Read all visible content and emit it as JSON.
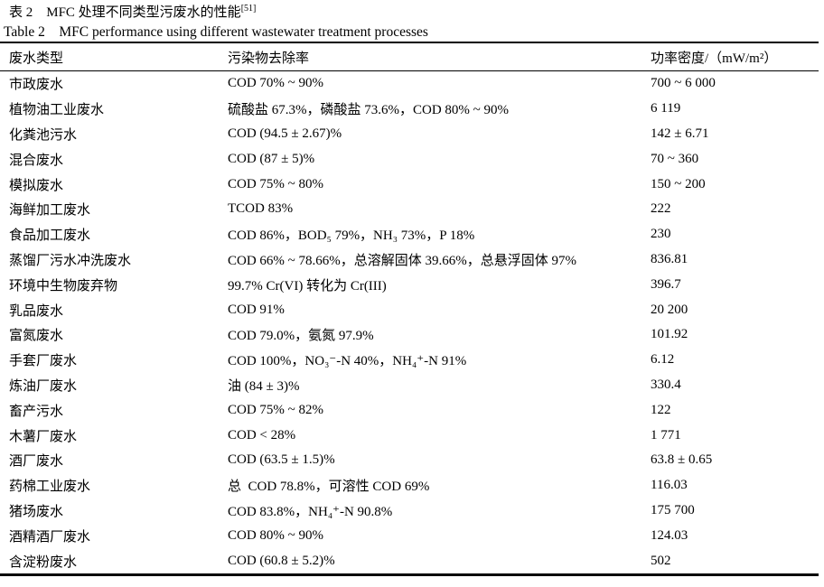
{
  "page": {
    "title_zh": "表 2　MFC 处理不同类型污废水的性能",
    "title_zh_sup": "[51]",
    "title_en": "Table 2　MFC performance using different wastewater treatment processes"
  },
  "table": {
    "columns": [
      "废水类型",
      "污染物去除率",
      "功率密度/（mW/m²）"
    ],
    "rows": [
      {
        "type": "市政废水",
        "removal": "COD 70% ~ 90%",
        "power": "700 ~ 6 000"
      },
      {
        "type": "植物油工业废水",
        "removal": "硫酸盐 67.3%，磷酸盐 73.6%，COD 80% ~ 90%",
        "power": "6 119"
      },
      {
        "type": "化粪池污水",
        "removal": "COD (94.5 ± 2.67)%",
        "power": "142 ± 6.71"
      },
      {
        "type": "混合废水",
        "removal": "COD (87 ± 5)%",
        "power": "70 ~ 360"
      },
      {
        "type": "模拟废水",
        "removal": "COD 75% ~ 80%",
        "power": "150 ~ 200"
      },
      {
        "type": "海鲜加工废水",
        "removal": "TCOD 83%",
        "power": "222"
      },
      {
        "type": "食品加工废水",
        "removal": "COD 86%，BOD₅ 79%，NH₃ 73%，P 18%",
        "power": "230"
      },
      {
        "type": "蒸馏厂污水冲洗废水",
        "removal": "COD 66% ~ 78.66%，总溶解固体 39.66%，总悬浮固体 97%",
        "power": "836.81"
      },
      {
        "type": "环境中生物废弃物",
        "removal": "99.7% Cr(VI) 转化为 Cr(III)",
        "power": "396.7"
      },
      {
        "type": "乳品废水",
        "removal": "COD 91%",
        "power": "20 200"
      },
      {
        "type": "富氮废水",
        "removal": "COD 79.0%，氨氮 97.9%",
        "power": "101.92"
      },
      {
        "type": "手套厂废水",
        "removal": "COD 100%，NO₃⁻-N 40%，NH₄⁺-N 91%",
        "power": "6.12"
      },
      {
        "type": "炼油厂废水",
        "removal": "油 (84 ± 3)%",
        "power": "330.4"
      },
      {
        "type": "畜产污水",
        "removal": "COD 75% ~ 82%",
        "power": "122"
      },
      {
        "type": "木薯厂废水",
        "removal": "COD < 28%",
        "power": "1 771"
      },
      {
        "type": "酒厂废水",
        "removal": "COD (63.5 ± 1.5)%",
        "power": "63.8 ± 0.65"
      },
      {
        "type": "药棉工业废水",
        "removal": "总  COD 78.8%，可溶性 COD 69%",
        "power": "116.03"
      },
      {
        "type": "猪场废水",
        "removal": "COD 83.8%，NH₄⁺-N 90.8%",
        "power": "175 700"
      },
      {
        "type": "酒精酒厂废水",
        "removal": "COD 80% ~ 90%",
        "power": "124.03"
      },
      {
        "type": "含淀粉废水",
        "removal": "COD (60.8 ± 5.2)%",
        "power": "502"
      }
    ]
  }
}
